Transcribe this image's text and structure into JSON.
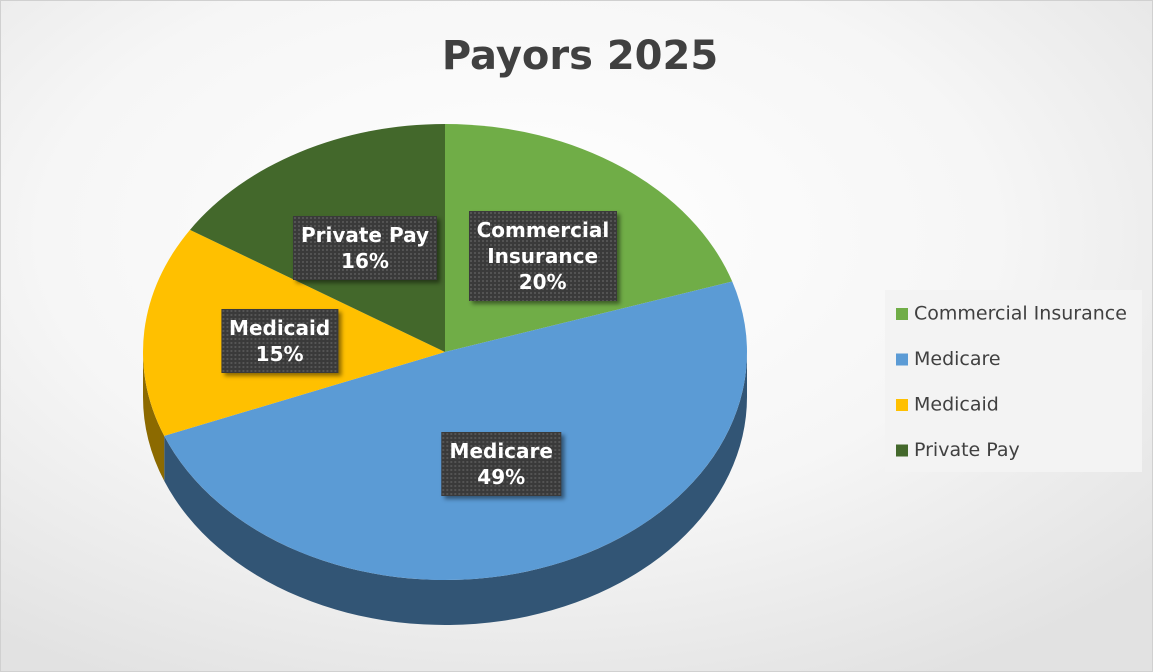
{
  "chart_data": {
    "type": "pie",
    "title": "Payors 2025",
    "categories": [
      "Commercial Insurance",
      "Medicare",
      "Medicaid",
      "Private Pay"
    ],
    "values": [
      20,
      49,
      15,
      16
    ],
    "value_labels": [
      "20%",
      "49%",
      "15%",
      "16%"
    ],
    "colors": [
      "#70ad47",
      "#5b9bd5",
      "#ffc000",
      "#43682b"
    ],
    "legend": "right"
  }
}
